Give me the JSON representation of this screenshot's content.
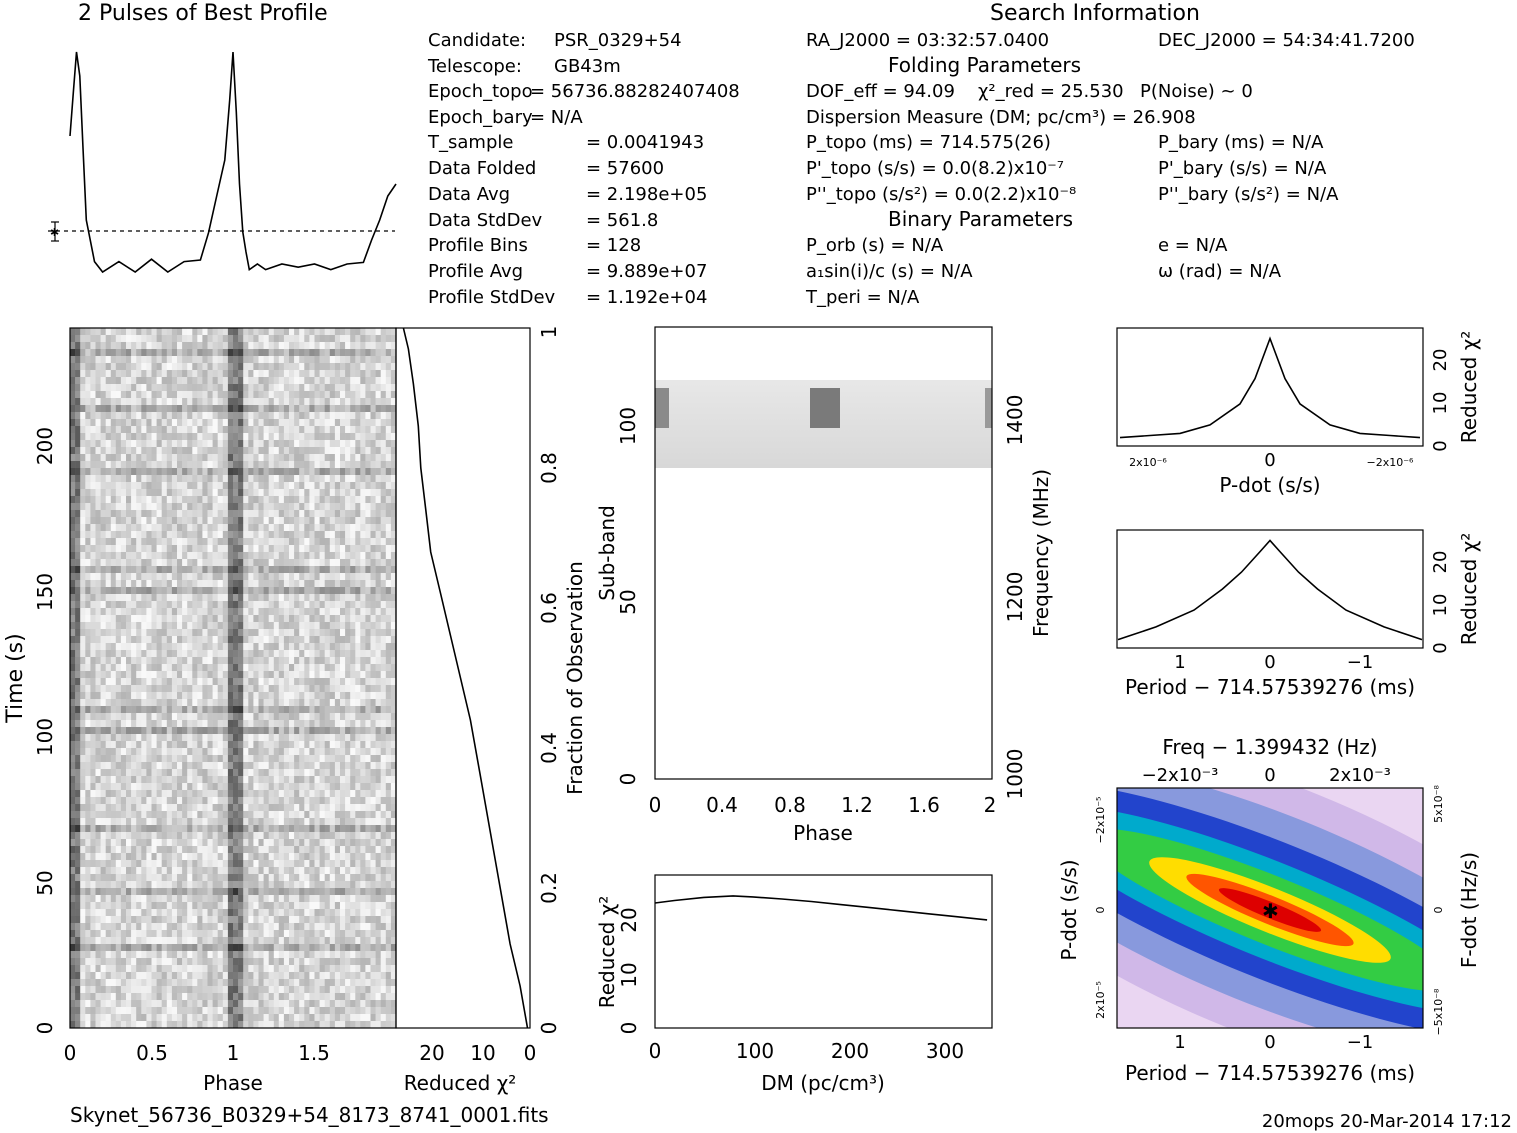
{
  "header": {
    "profile_title": "2 Pulses of Best Profile",
    "search_title": "Search Information",
    "folding_title": "Folding Parameters",
    "binary_title": "Binary Parameters"
  },
  "info_left": [
    [
      "Candidate:",
      "PSR_0329+54"
    ],
    [
      "Telescope:",
      "GB43m"
    ],
    [
      "Epoch_topo",
      "= 56736.88282407408"
    ],
    [
      "Epoch_bary",
      "= N/A"
    ],
    [
      "T_sample",
      "= 0.0041943"
    ],
    [
      "Data Folded",
      "= 57600"
    ],
    [
      "Data Avg",
      "= 2.198e+05"
    ],
    [
      "Data StdDev",
      "= 561.8"
    ],
    [
      "Profile Bins",
      "= 128"
    ],
    [
      "Profile Avg",
      "= 9.889e+07"
    ],
    [
      "Profile StdDev",
      "= 1.192e+04"
    ]
  ],
  "info_search": {
    "ra": "RA_J2000 = 03:32:57.0400",
    "dec": "DEC_J2000 = 54:34:41.7200",
    "dof": "DOF_eff = 94.09",
    "chi2": "χ²_red = 25.530",
    "pnoise": "P(Noise) ~ 0",
    "dm": "Dispersion Measure (DM; pc/cm³) = 26.908",
    "ptopo": "P_topo (ms) = 714.575(26)",
    "pbary": "P_bary (ms) = N/A",
    "pdtopo": "P'_topo (s/s) = 0.0(8.2)x10⁻⁷",
    "pdbary": "P'_bary (s/s) = N/A",
    "pddtopo": "P''_topo (s/s²) = 0.0(2.2)x10⁻⁸",
    "pddbary": "P''_bary (s/s²) = N/A",
    "porb": "P_orb (s) = N/A",
    "ecc": "e = N/A",
    "asini": "a₁sin(i)/c (s) = N/A",
    "omega": "ω (rad) = N/A",
    "tperi": "T_peri = N/A"
  },
  "footer": {
    "filename": "Skynet_56736_B0329+54_8173_8741_0001.fits",
    "stamp": "20mops 20-Mar-2014 17:12"
  },
  "chart_data": [
    {
      "type": "line",
      "title": "2 Pulses of Best Profile",
      "x": [
        0,
        0.02,
        0.04,
        0.06,
        0.08,
        0.1,
        0.15,
        0.2,
        0.3,
        0.4,
        0.5,
        0.6,
        0.7,
        0.8,
        0.85,
        0.9,
        0.95,
        0.98,
        1.0,
        1.02,
        1.04,
        1.06,
        1.08,
        1.1,
        1.15,
        1.2,
        1.3,
        1.4,
        1.5,
        1.6,
        1.7,
        1.8,
        1.85,
        1.9,
        1.95,
        2.0
      ],
      "y": [
        0.6,
        0.78,
        0.95,
        0.85,
        0.55,
        0.25,
        0.06,
        0.05,
        0.06,
        0.05,
        0.07,
        0.05,
        0.06,
        0.1,
        0.18,
        0.35,
        0.5,
        0.75,
        0.95,
        0.7,
        0.4,
        0.2,
        0.1,
        0.06,
        0.05,
        0.06,
        0.05,
        0.07,
        0.05,
        0.06,
        0.05,
        0.09,
        0.15,
        0.25,
        0.35,
        0.4
      ],
      "baseline": 0.12
    },
    {
      "type": "heatmap",
      "xlabel": "Phase",
      "ylabel": "Time (s)",
      "xlim": [
        0,
        2
      ],
      "ylim": [
        0,
        240
      ],
      "x_ticks": [
        "0",
        "0.5",
        "1",
        "1.5"
      ],
      "y_ticks": [
        "0",
        "50",
        "100",
        "150",
        "200"
      ]
    },
    {
      "type": "line",
      "xlabel": "Reduced χ²",
      "ylabel": "Fraction of Observation",
      "x_ticks": [
        "20",
        "10",
        "0"
      ],
      "y_ticks": [
        "0",
        "0.2",
        "0.4",
        "0.6",
        "0.8",
        "1"
      ],
      "x": [
        0.5,
        2,
        4,
        6,
        8,
        10,
        12,
        14,
        16,
        18,
        20,
        21,
        22,
        22.5,
        23.5,
        24.5,
        25.5
      ],
      "y": [
        0,
        0.06,
        0.12,
        0.2,
        0.28,
        0.36,
        0.44,
        0.5,
        0.56,
        0.62,
        0.68,
        0.74,
        0.8,
        0.86,
        0.92,
        0.97,
        1.0
      ]
    },
    {
      "type": "heatmap",
      "xlabel": "Phase",
      "ylabel": "Sub-band",
      "ylabel_right": "Frequency (MHz)",
      "x_ticks": [
        "0",
        "0.4",
        "0.8",
        "1.2",
        "1.6",
        "2"
      ],
      "y_ticks": [
        "0",
        "50",
        "100"
      ],
      "y_ticks_right": [
        "1000",
        "1200",
        "1400"
      ]
    },
    {
      "type": "line",
      "xlabel": "DM (pc/cm³)",
      "ylabel": "Reduced χ²",
      "x_ticks": [
        "0",
        "100",
        "200",
        "300"
      ],
      "y_ticks": [
        "0",
        "10",
        "20"
      ],
      "x": [
        0,
        20,
        50,
        80,
        100,
        130,
        160,
        190,
        220,
        250,
        280,
        310,
        340
      ],
      "y": [
        24.5,
        25,
        25.6,
        25.9,
        25.7,
        25.3,
        24.8,
        24.2,
        23.6,
        23,
        22.4,
        21.8,
        21.2
      ]
    },
    {
      "type": "line",
      "xlabel": "P-dot (s/s)",
      "ylabel": "Reduced χ²",
      "x_ticks": [
        "2x10⁻⁶",
        "0",
        "−2x10⁻⁶"
      ],
      "y_ticks": [
        "0",
        "10",
        "20"
      ],
      "x": [
        -1,
        -0.8,
        -0.6,
        -0.4,
        -0.2,
        -0.1,
        0,
        0.1,
        0.2,
        0.4,
        0.6,
        0.8,
        1
      ],
      "y": [
        2,
        2.5,
        3,
        5,
        10,
        16,
        25.5,
        16,
        10,
        5,
        3,
        2.5,
        2
      ]
    },
    {
      "type": "line",
      "xlabel": "Period − 714.57539276 (ms)",
      "ylabel": "Reduced χ²",
      "x_ticks": [
        "1",
        "0",
        "−1"
      ],
      "y_ticks": [
        "0",
        "10",
        "20"
      ],
      "x": [
        -1.6,
        -1.2,
        -0.8,
        -0.5,
        -0.3,
        -0.1,
        0,
        0.1,
        0.3,
        0.5,
        0.8,
        1.2,
        1.6
      ],
      "y": [
        2,
        5,
        9,
        14,
        18,
        23,
        25.5,
        23,
        18,
        14,
        9,
        5,
        2
      ]
    },
    {
      "type": "heatmap",
      "title": "Freq − 1.399432 (Hz)",
      "xlabel": "Period − 714.57539276 (ms)",
      "ylabel": "P-dot (s/s)",
      "ylabel_right": "F-dot (Hz/s)",
      "x_ticks": [
        "1",
        "0",
        "−1"
      ],
      "x_ticks_top": [
        "−2x10⁻³",
        "0",
        "2x10⁻³"
      ],
      "y_ticks": [
        "2x10⁻⁵",
        "0",
        "−2x10⁻⁵"
      ],
      "y_ticks_right": [
        "−5x10⁻⁸",
        "0",
        "5x10⁻⁸"
      ]
    }
  ]
}
